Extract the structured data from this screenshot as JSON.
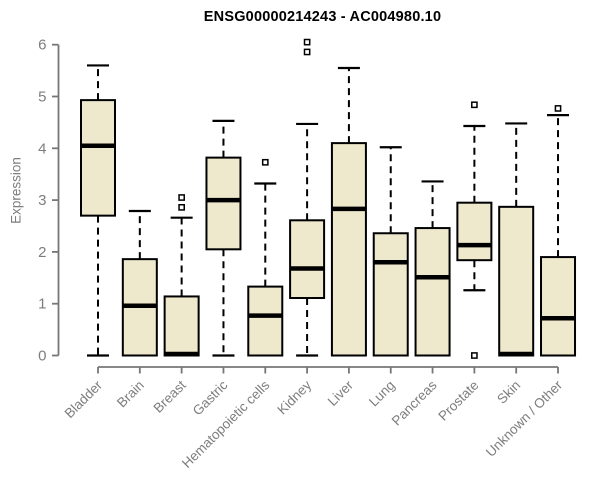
{
  "title": "ENSG00000214243 - AC004980.10",
  "ylabel": "Expression",
  "chart_data": {
    "type": "boxplot",
    "title": "ENSG00000214243 - AC004980.10",
    "ylabel": "Expression",
    "xlabel": "",
    "ylim": [
      0,
      6.2
    ],
    "yticks": [
      0,
      1,
      2,
      3,
      4,
      5,
      6
    ],
    "grid": false,
    "legend": "none",
    "categories": [
      "Bladder",
      "Brain",
      "Breast",
      "Gastric",
      "Hematopoietic cells",
      "Kidney",
      "Liver",
      "Lung",
      "Pancreas",
      "Prostate",
      "Skin",
      "Unknown / Other"
    ],
    "boxes": [
      {
        "category": "Bladder",
        "whisker_low": 0,
        "q1": 2.7,
        "median": 4.05,
        "q3": 4.93,
        "whisker_high": 5.6,
        "outliers": []
      },
      {
        "category": "Brain",
        "whisker_low": 0,
        "q1": 0,
        "median": 0.96,
        "q3": 1.86,
        "whisker_high": 2.79,
        "outliers": []
      },
      {
        "category": "Breast",
        "whisker_low": 0,
        "q1": 0,
        "median": 0.03,
        "q3": 1.14,
        "whisker_high": 2.66,
        "outliers": [
          2.86,
          3.05
        ]
      },
      {
        "category": "Gastric",
        "whisker_low": 0,
        "q1": 2.05,
        "median": 3.0,
        "q3": 3.82,
        "whisker_high": 4.53,
        "outliers": []
      },
      {
        "category": "Hematopoietic cells",
        "whisker_low": 0,
        "q1": 0,
        "median": 0.77,
        "q3": 1.33,
        "whisker_high": 3.32,
        "outliers": [
          3.73
        ]
      },
      {
        "category": "Kidney",
        "whisker_low": 0,
        "q1": 1.11,
        "median": 1.68,
        "q3": 2.61,
        "whisker_high": 4.47,
        "outliers": [
          5.86,
          6.05
        ]
      },
      {
        "category": "Liver",
        "whisker_low": 0,
        "q1": 0,
        "median": 2.83,
        "q3": 4.1,
        "whisker_high": 5.55,
        "outliers": []
      },
      {
        "category": "Lung",
        "whisker_low": 0,
        "q1": 0,
        "median": 1.8,
        "q3": 2.36,
        "whisker_high": 4.02,
        "outliers": []
      },
      {
        "category": "Pancreas",
        "whisker_low": 0,
        "q1": 0,
        "median": 1.51,
        "q3": 2.46,
        "whisker_high": 3.36,
        "outliers": []
      },
      {
        "category": "Prostate",
        "whisker_low": 1.26,
        "q1": 1.84,
        "median": 2.13,
        "q3": 2.95,
        "whisker_high": 4.43,
        "outliers": [
          4.84,
          0.0
        ]
      },
      {
        "category": "Skin",
        "whisker_low": 0,
        "q1": 0,
        "median": 0.03,
        "q3": 2.87,
        "whisker_high": 4.48,
        "outliers": []
      },
      {
        "category": "Unknown / Other",
        "whisker_low": 0,
        "q1": 0,
        "median": 0.72,
        "q3": 1.9,
        "whisker_high": 4.64,
        "outliers": [
          4.77
        ]
      }
    ],
    "colors": {
      "box_fill": "#EEE8CD",
      "box_stroke": "#000000",
      "median": "#000000",
      "whisker": "#000000",
      "outlier_stroke": "#000000",
      "outlier_fill": "#FFFFFF",
      "axis": "#777777",
      "tick_label": "#7D7D7D",
      "title": "#000000",
      "background": "#FFFFFF"
    }
  }
}
